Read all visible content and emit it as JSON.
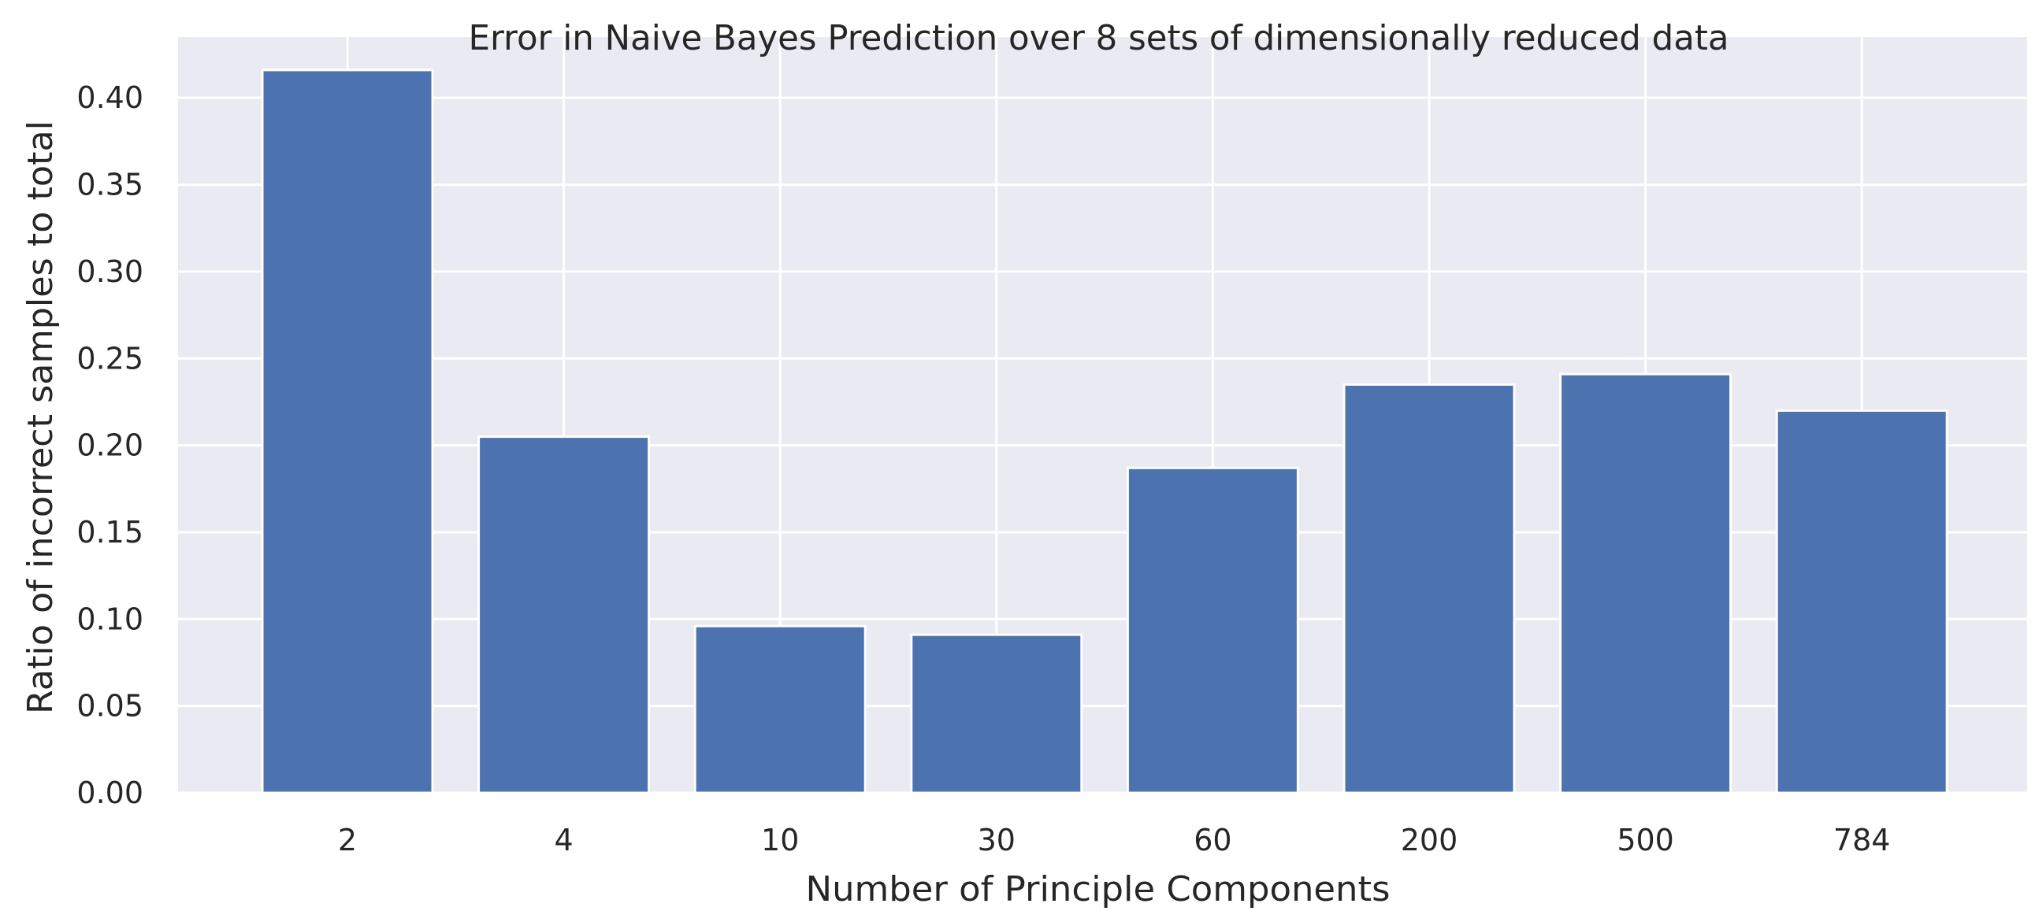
{
  "chart_data": {
    "type": "bar",
    "title": "Error in Naive Bayes Prediction over 8 sets of dimensionally reduced data",
    "xlabel": "Number of Principle Components",
    "ylabel": "Ratio of incorrect samples to total",
    "categories": [
      "2",
      "4",
      "10",
      "30",
      "60",
      "200",
      "500",
      "784"
    ],
    "values": [
      0.416,
      0.205,
      0.096,
      0.091,
      0.187,
      0.235,
      0.241,
      0.22
    ],
    "ylim": [
      0,
      0.435
    ],
    "yticks": [
      0.0,
      0.05,
      0.1,
      0.15,
      0.2,
      0.25,
      0.3,
      0.35,
      0.4
    ],
    "ytick_labels": [
      "0.00",
      "0.05",
      "0.10",
      "0.15",
      "0.20",
      "0.25",
      "0.30",
      "0.35",
      "0.40"
    ],
    "grid": true,
    "legend": "none",
    "colors": {
      "bar": "#4c72b0",
      "plot_background": "#eaeaf2",
      "grid": "#ffffff",
      "text": "#262626"
    }
  }
}
